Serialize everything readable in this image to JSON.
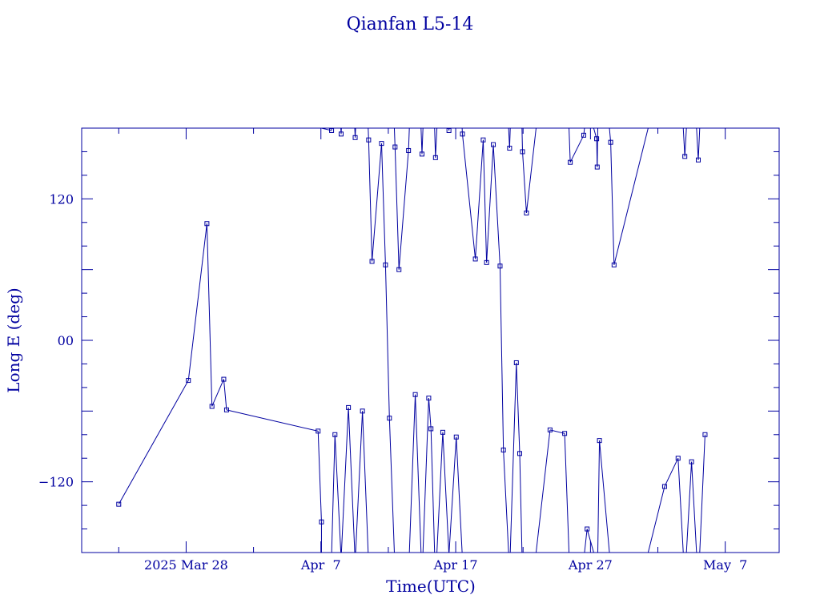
{
  "chart_data": {
    "type": "line",
    "title": "Qianfan L5-14",
    "xlabel": "Time(UTC)",
    "ylabel": "Long E (deg)",
    "xlim": [
      "2025-03-20T06:00",
      "2025-05-11T00:00"
    ],
    "ylim": [
      -180,
      180
    ],
    "x_tick_labels": [
      {
        "date": "2025-03-28",
        "label": "2025 Mar 28"
      },
      {
        "date": "2025-04-07",
        "label": "Apr  7"
      },
      {
        "date": "2025-04-17",
        "label": "Apr 17"
      },
      {
        "date": "2025-04-27",
        "label": "Apr 27"
      },
      {
        "date": "2025-05-07",
        "label": "May  7"
      }
    ],
    "y_tick_labels": [
      {
        "value": 120,
        "label": "120"
      },
      {
        "value": 0,
        "label": "00"
      },
      {
        "value": -120,
        "label": "−120"
      }
    ],
    "grid": false,
    "wrap_longitude": true,
    "color": "#0000a0",
    "series": [
      {
        "points": [
          [
            "2025-03-23T00:00",
            -139
          ],
          [
            "2025-03-28T04:00",
            -34
          ],
          [
            "2025-03-29T13:00",
            99
          ],
          [
            "2025-03-29T22:00",
            -56
          ],
          [
            "2025-03-30T19:00",
            -33
          ],
          [
            "2025-03-31T00:00",
            -59
          ],
          [
            "2025-04-06T19:00",
            -77
          ],
          [
            "2025-04-07T01:00",
            -154
          ],
          [
            "2025-04-07T01:00",
            180
          ],
          [
            "2025-04-07T19:00",
            178
          ],
          [
            "2025-04-08T01:00",
            -80
          ],
          [
            "2025-04-08T12:00",
            175
          ],
          [
            "2025-04-09T01:00",
            -57
          ],
          [
            "2025-04-09T13:00",
            172
          ],
          [
            "2025-04-10T02:00",
            -60
          ],
          [
            "2025-04-10T13:00",
            170
          ],
          [
            "2025-04-10T19:00",
            67
          ],
          [
            "2025-04-11T12:00",
            167
          ],
          [
            "2025-04-11T19:00",
            64
          ],
          [
            "2025-04-12T02:00",
            -66
          ],
          [
            "2025-04-12T12:00",
            164
          ],
          [
            "2025-04-12T19:00",
            60
          ],
          [
            "2025-04-13T12:00",
            161
          ],
          [
            "2025-04-14T00:00",
            -46
          ],
          [
            "2025-04-14T12:00",
            158
          ],
          [
            "2025-04-15T00:00",
            -49
          ],
          [
            "2025-04-15T04:00",
            -75
          ],
          [
            "2025-04-15T12:00",
            155
          ],
          [
            "2025-04-16T01:00",
            -78
          ],
          [
            "2025-04-16T12:00",
            178
          ],
          [
            "2025-04-17T01:00",
            -82
          ],
          [
            "2025-04-17T12:00",
            175
          ],
          [
            "2025-04-18T11:00",
            69
          ],
          [
            "2025-04-19T01:00",
            170
          ],
          [
            "2025-04-19T07:00",
            66
          ],
          [
            "2025-04-19T19:00",
            166
          ],
          [
            "2025-04-20T07:00",
            63
          ],
          [
            "2025-04-20T13:00",
            -93
          ],
          [
            "2025-04-21T00:00",
            163
          ],
          [
            "2025-04-21T12:00",
            -19
          ],
          [
            "2025-04-21T18:00",
            -96
          ],
          [
            "2025-04-21T23:00",
            160
          ],
          [
            "2025-04-22T06:00",
            108
          ],
          [
            "2025-04-24T00:00",
            -76
          ],
          [
            "2025-04-25T02:00",
            -79
          ],
          [
            "2025-04-25T12:00",
            151
          ],
          [
            "2025-04-26T12:00",
            174
          ],
          [
            "2025-04-26T18:00",
            -160
          ],
          [
            "2025-04-27T11:00",
            171
          ],
          [
            "2025-04-27T12:00",
            147
          ],
          [
            "2025-04-27T16:00",
            -85
          ],
          [
            "2025-04-28T12:00",
            168
          ],
          [
            "2025-04-28T18:00",
            64
          ],
          [
            "2025-05-02T12:00",
            -124
          ],
          [
            "2025-05-03T12:00",
            -100
          ],
          [
            "2025-05-04T00:00",
            156
          ],
          [
            "2025-05-04T12:00",
            -103
          ],
          [
            "2025-05-05T00:00",
            153
          ],
          [
            "2025-05-05T12:00",
            -80
          ]
        ]
      }
    ]
  }
}
